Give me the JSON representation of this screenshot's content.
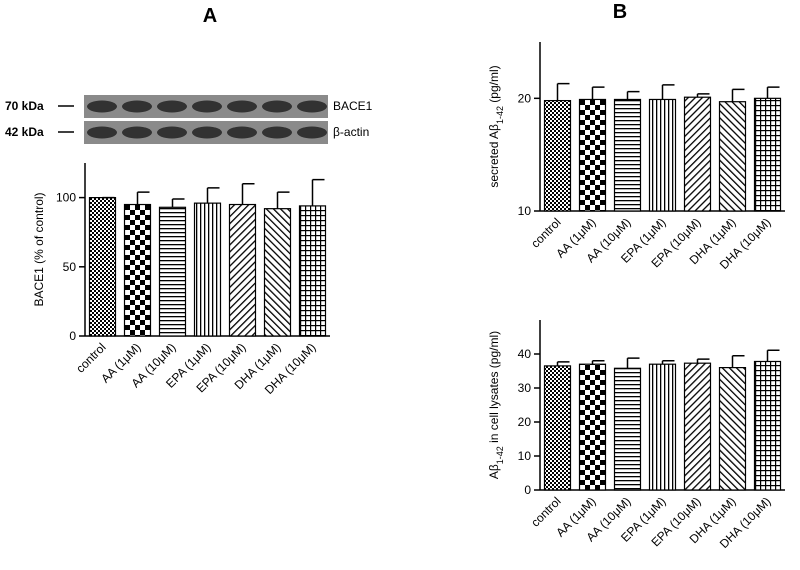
{
  "figure": {
    "panels": [
      "A",
      "B"
    ],
    "blot": {
      "markers": [
        "70 kDa",
        "42 kDa"
      ],
      "bands": [
        "BACE1",
        "β-actin"
      ]
    }
  },
  "chart_data": [
    {
      "type": "bar",
      "ylabel": "BACE1 (% of control)",
      "categories": [
        "control",
        "AA (1μM)",
        "AA (10μM)",
        "EPA (1μM)",
        "EPA (10μM)",
        "DHA (1μM)",
        "DHA (10μM)"
      ],
      "values": [
        100,
        95,
        93,
        96,
        95,
        92,
        94
      ],
      "errors": [
        0,
        9,
        6,
        11,
        15,
        12,
        19
      ],
      "ylim": [
        0,
        125
      ],
      "yticks": [
        0,
        50,
        100
      ]
    },
    {
      "type": "bar",
      "ylabel": [
        "secreted Aβ",
        "1-42",
        " (pg/ml)"
      ],
      "categories": [
        "control",
        "AA (1μM)",
        "AA (10μM)",
        "EPA (1μM)",
        "EPA (10μM)",
        "DHA (1μM)",
        "DHA (10μM)"
      ],
      "values": [
        19.8,
        19.9,
        19.9,
        19.9,
        20.1,
        19.7,
        20.0
      ],
      "errors": [
        1.5,
        1.1,
        0.7,
        1.3,
        0.3,
        1.1,
        1.0
      ],
      "ylim": [
        10,
        25
      ],
      "yticks": [
        10,
        20
      ]
    },
    {
      "type": "bar",
      "ylabel": [
        "Aβ",
        "1-42",
        " in cell lysates (pg/ml)"
      ],
      "categories": [
        "control",
        "AA (1μM)",
        "AA (10μM)",
        "EPA (1μM)",
        "EPA (10μM)",
        "DHA (1μM)",
        "DHA (10μM)"
      ],
      "values": [
        36.5,
        37,
        35.8,
        37,
        37.3,
        36,
        37.8
      ],
      "errors": [
        1.2,
        1,
        3,
        1,
        1.2,
        3.5,
        3.3
      ],
      "ylim": [
        0,
        50
      ],
      "yticks": [
        0,
        10,
        20,
        30,
        40
      ]
    }
  ]
}
